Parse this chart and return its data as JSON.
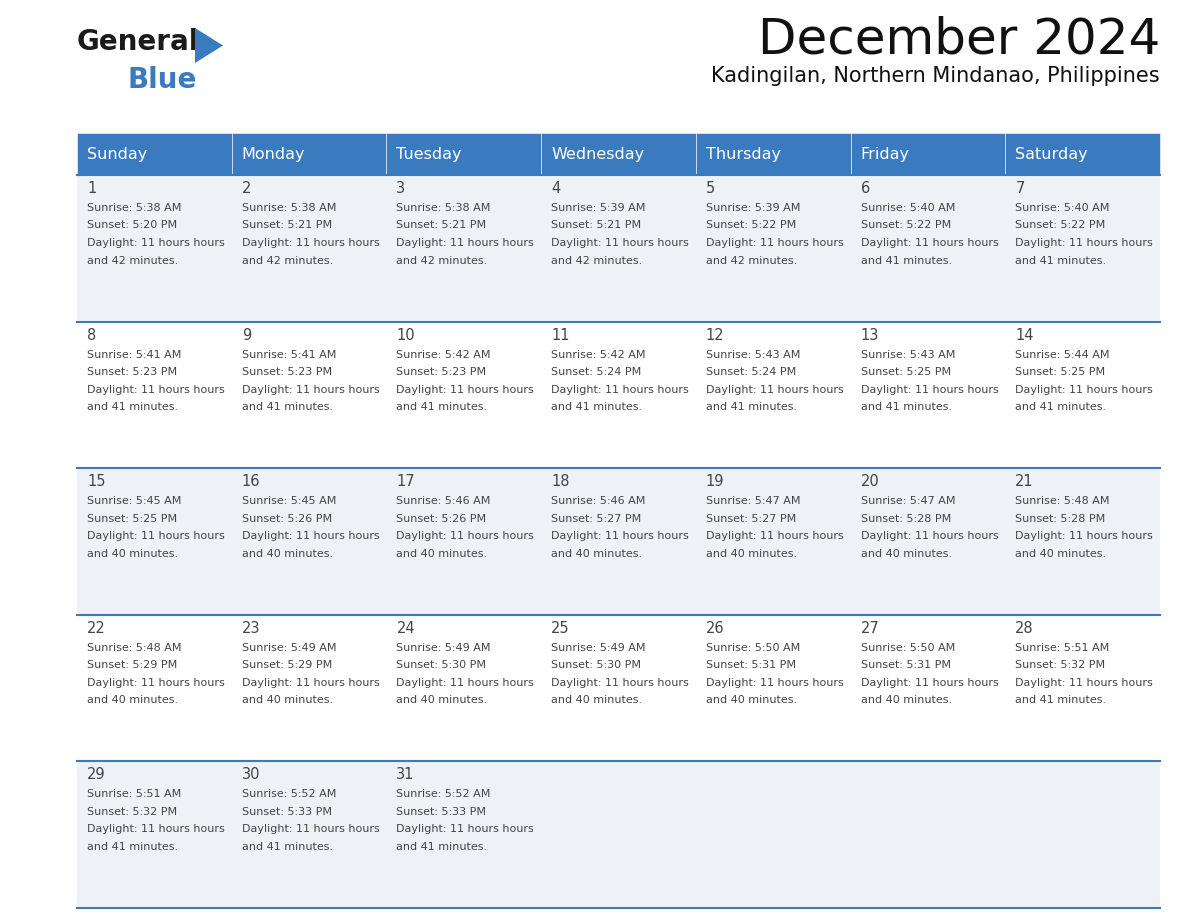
{
  "title": "December 2024",
  "subtitle": "Kadingilan, Northern Mindanao, Philippines",
  "header_bg": "#3a7abf",
  "header_text": "#ffffff",
  "row_bg_odd": "#eef2f7",
  "row_bg_even": "#ffffff",
  "divider_color": "#3a7abf",
  "text_color": "#444444",
  "days_of_week": [
    "Sunday",
    "Monday",
    "Tuesday",
    "Wednesday",
    "Thursday",
    "Friday",
    "Saturday"
  ],
  "calendar": [
    [
      {
        "day": 1,
        "sunrise": "5:38 AM",
        "sunset": "5:20 PM",
        "daylight": "11 hours and 42 minutes."
      },
      {
        "day": 2,
        "sunrise": "5:38 AM",
        "sunset": "5:21 PM",
        "daylight": "11 hours and 42 minutes."
      },
      {
        "day": 3,
        "sunrise": "5:38 AM",
        "sunset": "5:21 PM",
        "daylight": "11 hours and 42 minutes."
      },
      {
        "day": 4,
        "sunrise": "5:39 AM",
        "sunset": "5:21 PM",
        "daylight": "11 hours and 42 minutes."
      },
      {
        "day": 5,
        "sunrise": "5:39 AM",
        "sunset": "5:22 PM",
        "daylight": "11 hours and 42 minutes."
      },
      {
        "day": 6,
        "sunrise": "5:40 AM",
        "sunset": "5:22 PM",
        "daylight": "11 hours and 41 minutes."
      },
      {
        "day": 7,
        "sunrise": "5:40 AM",
        "sunset": "5:22 PM",
        "daylight": "11 hours and 41 minutes."
      }
    ],
    [
      {
        "day": 8,
        "sunrise": "5:41 AM",
        "sunset": "5:23 PM",
        "daylight": "11 hours and 41 minutes."
      },
      {
        "day": 9,
        "sunrise": "5:41 AM",
        "sunset": "5:23 PM",
        "daylight": "11 hours and 41 minutes."
      },
      {
        "day": 10,
        "sunrise": "5:42 AM",
        "sunset": "5:23 PM",
        "daylight": "11 hours and 41 minutes."
      },
      {
        "day": 11,
        "sunrise": "5:42 AM",
        "sunset": "5:24 PM",
        "daylight": "11 hours and 41 minutes."
      },
      {
        "day": 12,
        "sunrise": "5:43 AM",
        "sunset": "5:24 PM",
        "daylight": "11 hours and 41 minutes."
      },
      {
        "day": 13,
        "sunrise": "5:43 AM",
        "sunset": "5:25 PM",
        "daylight": "11 hours and 41 minutes."
      },
      {
        "day": 14,
        "sunrise": "5:44 AM",
        "sunset": "5:25 PM",
        "daylight": "11 hours and 41 minutes."
      }
    ],
    [
      {
        "day": 15,
        "sunrise": "5:45 AM",
        "sunset": "5:25 PM",
        "daylight": "11 hours and 40 minutes."
      },
      {
        "day": 16,
        "sunrise": "5:45 AM",
        "sunset": "5:26 PM",
        "daylight": "11 hours and 40 minutes."
      },
      {
        "day": 17,
        "sunrise": "5:46 AM",
        "sunset": "5:26 PM",
        "daylight": "11 hours and 40 minutes."
      },
      {
        "day": 18,
        "sunrise": "5:46 AM",
        "sunset": "5:27 PM",
        "daylight": "11 hours and 40 minutes."
      },
      {
        "day": 19,
        "sunrise": "5:47 AM",
        "sunset": "5:27 PM",
        "daylight": "11 hours and 40 minutes."
      },
      {
        "day": 20,
        "sunrise": "5:47 AM",
        "sunset": "5:28 PM",
        "daylight": "11 hours and 40 minutes."
      },
      {
        "day": 21,
        "sunrise": "5:48 AM",
        "sunset": "5:28 PM",
        "daylight": "11 hours and 40 minutes."
      }
    ],
    [
      {
        "day": 22,
        "sunrise": "5:48 AM",
        "sunset": "5:29 PM",
        "daylight": "11 hours and 40 minutes."
      },
      {
        "day": 23,
        "sunrise": "5:49 AM",
        "sunset": "5:29 PM",
        "daylight": "11 hours and 40 minutes."
      },
      {
        "day": 24,
        "sunrise": "5:49 AM",
        "sunset": "5:30 PM",
        "daylight": "11 hours and 40 minutes."
      },
      {
        "day": 25,
        "sunrise": "5:49 AM",
        "sunset": "5:30 PM",
        "daylight": "11 hours and 40 minutes."
      },
      {
        "day": 26,
        "sunrise": "5:50 AM",
        "sunset": "5:31 PM",
        "daylight": "11 hours and 40 minutes."
      },
      {
        "day": 27,
        "sunrise": "5:50 AM",
        "sunset": "5:31 PM",
        "daylight": "11 hours and 40 minutes."
      },
      {
        "day": 28,
        "sunrise": "5:51 AM",
        "sunset": "5:32 PM",
        "daylight": "11 hours and 41 minutes."
      }
    ],
    [
      {
        "day": 29,
        "sunrise": "5:51 AM",
        "sunset": "5:32 PM",
        "daylight": "11 hours and 41 minutes."
      },
      {
        "day": 30,
        "sunrise": "5:52 AM",
        "sunset": "5:33 PM",
        "daylight": "11 hours and 41 minutes."
      },
      {
        "day": 31,
        "sunrise": "5:52 AM",
        "sunset": "5:33 PM",
        "daylight": "11 hours and 41 minutes."
      },
      null,
      null,
      null,
      null
    ]
  ],
  "cell_font_size": 8.0,
  "day_num_font_size": 10.5,
  "header_font_size": 11.5,
  "title_font_size": 36,
  "subtitle_font_size": 15
}
